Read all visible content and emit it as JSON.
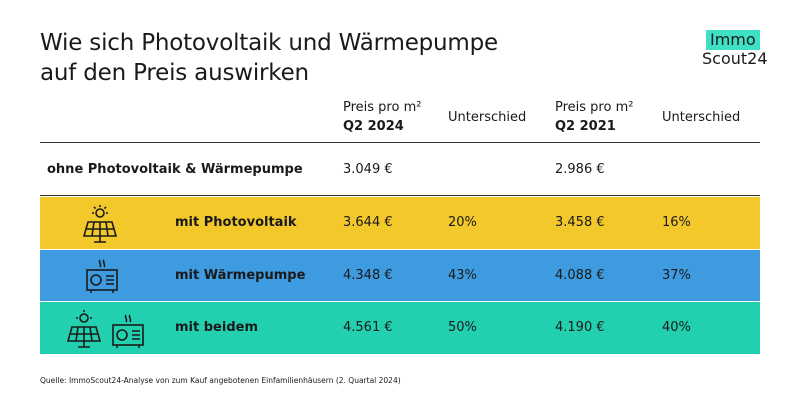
{
  "header": {
    "title_lines": [
      "Wie sich Photovoltaik und Wärmepumpe",
      "auf den Preis auswirken"
    ],
    "logo": [
      "Immo",
      "Scout24"
    ]
  },
  "table": {
    "columns": [
      {
        "line1": "Preis pro m²",
        "line2": "Q2 2024"
      },
      "Unterschied",
      {
        "line1": "Preis pro m²",
        "line2": "Q2 2021"
      },
      "Unterschied"
    ],
    "rows": [
      {
        "label": "ohne Photovoltaik & Wärmepumpe",
        "price_2024": "3.049 €",
        "price_2021": "2.986 €"
      },
      {
        "label": "mit Photovoltaik",
        "price_2024": "3.644 €",
        "diff_2024": "20%",
        "price_2021": "3.458 €",
        "diff_2021": "16%"
      },
      {
        "label": "mit Wärmepumpe",
        "price_2024": "4.348 €",
        "diff_2024": "43%",
        "price_2021": "4.088 €",
        "diff_2021": "37%"
      },
      {
        "label": "mit beidem",
        "price_2024": "4.561 €",
        "diff_2024": "50%",
        "price_2021": "4.190 €",
        "diff_2021": "40%"
      }
    ]
  },
  "source": "Quelle: ImmoScout24-Analyse von zum Kauf angebotenen Einfamilienhäusern (2. Quartal 2024)"
}
